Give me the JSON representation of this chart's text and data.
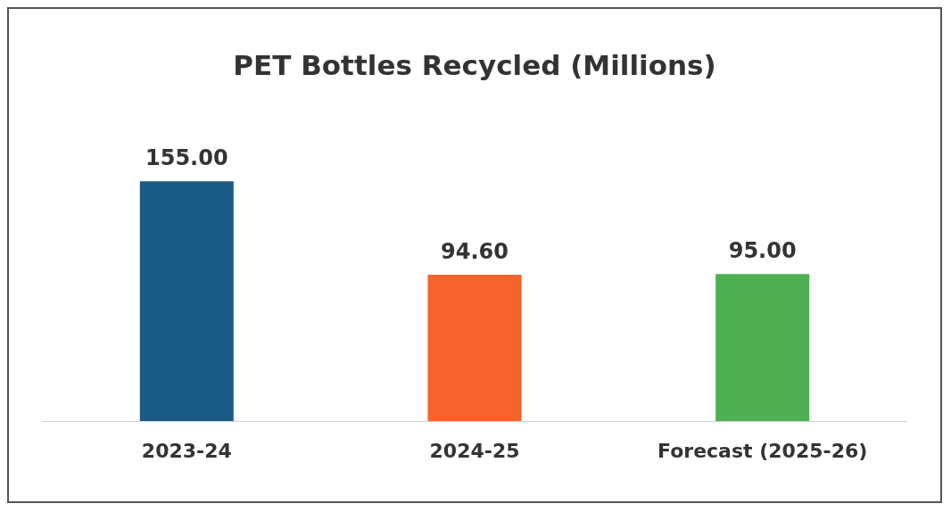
{
  "chart_data": {
    "type": "bar",
    "title": "PET Bottles Recycled (Millions)",
    "categories": [
      "2023-24",
      "2024-25",
      "Forecast (2025-26)"
    ],
    "values": [
      155,
      94.6,
      95
    ],
    "colors": [
      "#1b5a86",
      "#f5622a",
      "#4caf50"
    ],
    "value_labels": [
      "155.00",
      "94.60",
      "95.00"
    ]
  }
}
